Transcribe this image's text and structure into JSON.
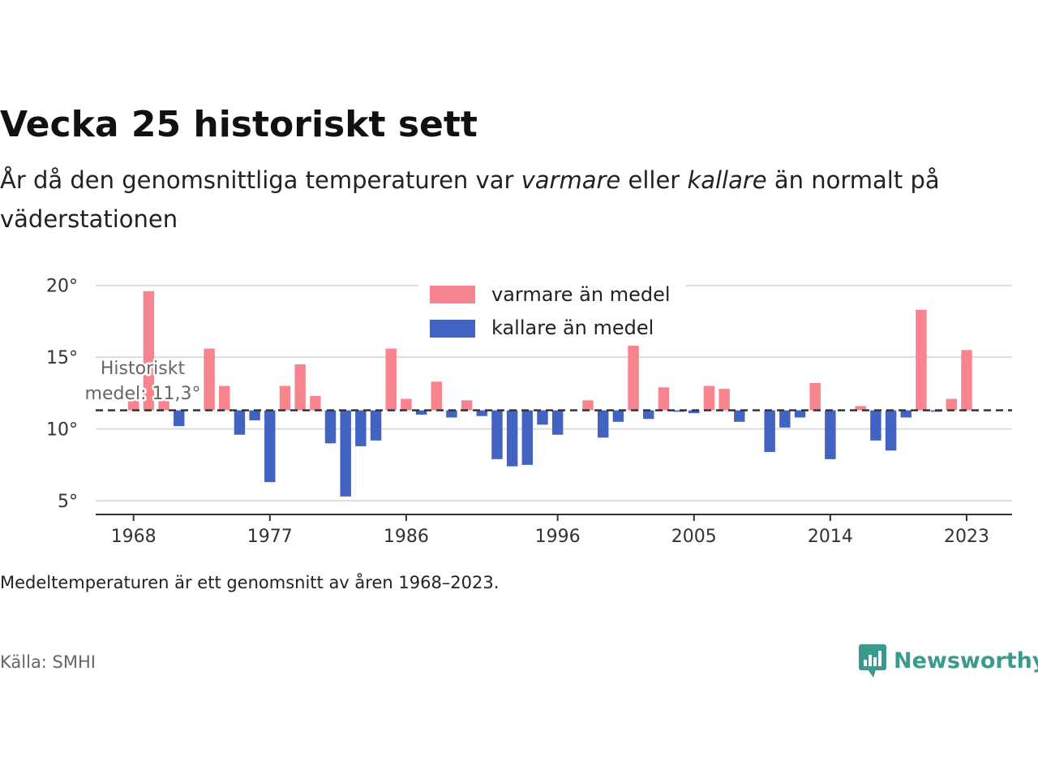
{
  "header": {
    "title": "Vecka 25 historiskt sett",
    "subtitle_part1": "År då den genomsnittliga temperaturen var ",
    "subtitle_em1": "varmare",
    "subtitle_part2": " eller ",
    "subtitle_em2": "kallare",
    "subtitle_part3": " än normalt på väderstationen"
  },
  "footer": {
    "note": "Medeltemperaturen är ett genomsnitt av åren 1968–2023.",
    "source": "Källa: SMHI",
    "brand": "Newsworthy",
    "brand_icon": "newsworthy-logo-icon"
  },
  "colors": {
    "warmer": "#f7848f",
    "colder": "#4263c2",
    "mean_line": "#333333",
    "grid": "#dddddd",
    "brand": "#3a9a8c"
  },
  "chart_data": {
    "type": "bar",
    "baseline": 11.3,
    "x": [
      1968,
      1969,
      1970,
      1971,
      1972,
      1973,
      1974,
      1975,
      1976,
      1977,
      1978,
      1979,
      1980,
      1981,
      1982,
      1983,
      1984,
      1985,
      1986,
      1987,
      1988,
      1989,
      1990,
      1991,
      1992,
      1993,
      1994,
      1995,
      1996,
      1997,
      1998,
      1999,
      2000,
      2001,
      2002,
      2003,
      2004,
      2005,
      2006,
      2007,
      2008,
      2009,
      2010,
      2011,
      2012,
      2013,
      2014,
      2015,
      2016,
      2017,
      2018,
      2019,
      2020,
      2021,
      2022,
      2023
    ],
    "values": [
      12.0,
      19.6,
      12.0,
      10.2,
      null,
      15.6,
      13.0,
      9.6,
      10.6,
      6.3,
      13.0,
      14.5,
      12.3,
      9.0,
      5.3,
      8.8,
      9.2,
      15.6,
      12.1,
      11.0,
      13.3,
      10.8,
      12.0,
      10.9,
      7.9,
      7.4,
      7.5,
      10.3,
      9.6,
      null,
      12.0,
      9.4,
      10.5,
      15.8,
      10.7,
      12.9,
      11.2,
      11.1,
      13.0,
      12.8,
      10.5,
      null,
      8.4,
      10.1,
      10.8,
      13.2,
      7.9,
      null,
      11.6,
      9.2,
      8.5,
      10.8,
      18.3,
      11.2,
      12.1,
      15.5
    ],
    "series": [
      {
        "name": "varmare än medel",
        "color": "#f7848f"
      },
      {
        "name": "kallare än medel",
        "color": "#4263c2"
      }
    ],
    "y_ticks": [
      5,
      10,
      15,
      20
    ],
    "y_tick_labels": [
      "5°",
      "10°",
      "15°",
      "20°"
    ],
    "x_ticks": [
      1968,
      1977,
      1986,
      1996,
      2005,
      2014,
      2023
    ],
    "x_tick_labels": [
      "1968",
      "1977",
      "1986",
      "1996",
      "2005",
      "2014",
      "2023"
    ],
    "ylim": [
      4.5,
      21
    ],
    "xlim": [
      1965.5,
      2026
    ],
    "annotation": {
      "line1": "Historiskt",
      "line2": "medel: 11,3°"
    },
    "grid": true,
    "legend_position": "top-center"
  }
}
